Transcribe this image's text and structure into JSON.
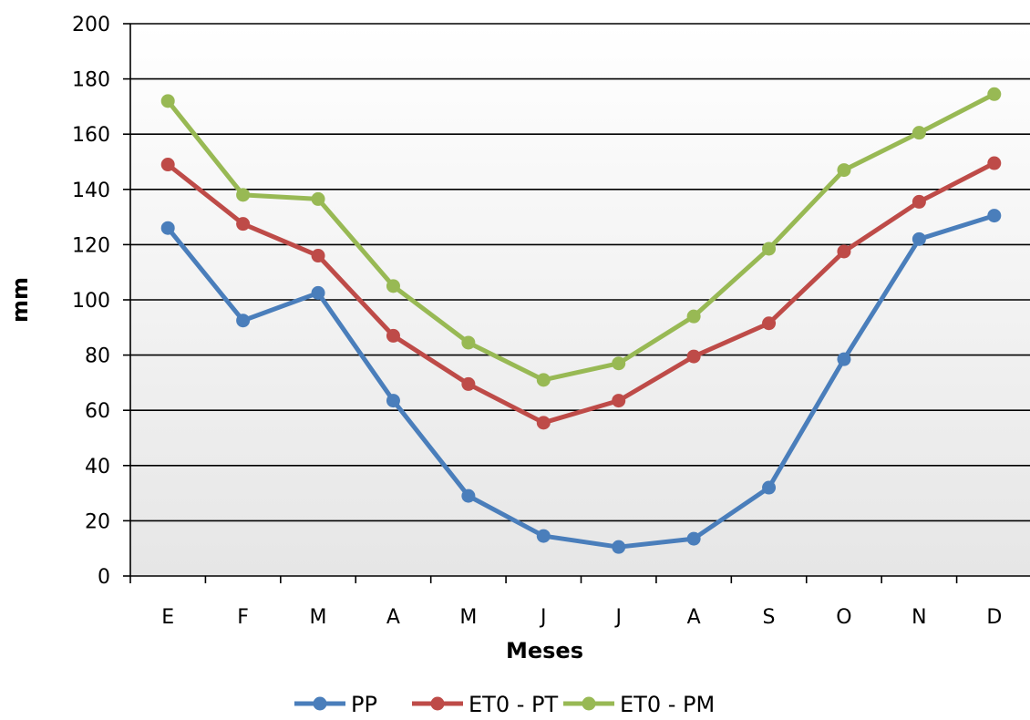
{
  "chart_data": {
    "type": "line",
    "title": "",
    "xlabel": "Meses",
    "ylabel": "mm",
    "ylim": [
      0,
      200
    ],
    "yticks": [
      0,
      20,
      40,
      60,
      80,
      100,
      120,
      140,
      160,
      180,
      200
    ],
    "grid": true,
    "legend_position": "bottom",
    "categories": [
      "E",
      "F",
      "M",
      "A",
      "M",
      "J",
      "J",
      "A",
      "S",
      "O",
      "N",
      "D"
    ],
    "series": [
      {
        "name": "PP",
        "color": "#4a7ebb",
        "values": [
          126,
          92.5,
          102.5,
          63.5,
          29,
          14.5,
          10.5,
          13.5,
          32,
          78.5,
          122,
          130.5
        ]
      },
      {
        "name": "ET0 - PT",
        "color": "#be4b48",
        "values": [
          149,
          127.5,
          116,
          87,
          69.5,
          55.5,
          63.5,
          79.5,
          91.5,
          117.5,
          135.5,
          149.5
        ]
      },
      {
        "name": "ET0 - PM",
        "color": "#98b954",
        "values": [
          172,
          138,
          136.5,
          105,
          84.5,
          71,
          77,
          94,
          118.5,
          147,
          160.5,
          174.5
        ]
      }
    ]
  }
}
